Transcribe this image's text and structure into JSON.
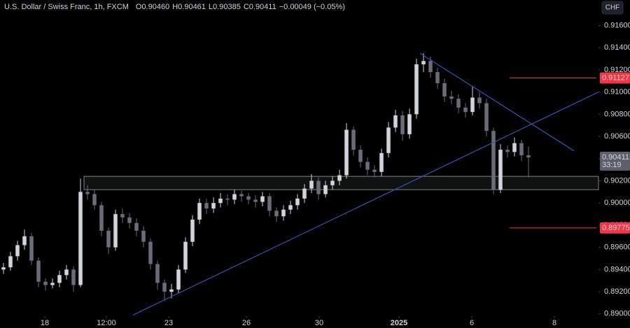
{
  "chart_data": {
    "type": "candlestick",
    "title": "U.S. Dollar / Swiss Franc, 1h, FXCM",
    "ohlc_legend": [
      {
        "key": "O",
        "value": "0.90460"
      },
      {
        "key": "H",
        "value": "0.90461"
      },
      {
        "key": "L",
        "value": "0.90385"
      },
      {
        "key": "C",
        "value": "0.90411"
      }
    ],
    "change": "−0.00049 (−0.05%)",
    "currency": "CHF",
    "up_color": "#d1d4dc",
    "down_color": "#6a6d78",
    "xlim": [
      -0.5,
      85
    ],
    "xticks": [
      {
        "value": 5.9,
        "label": "18"
      },
      {
        "value": 14.7,
        "label": "12:00"
      },
      {
        "value": 23.6,
        "label": "23"
      },
      {
        "value": 34.7,
        "label": "26"
      },
      {
        "value": 45.1,
        "label": "30"
      },
      {
        "value": 56.5,
        "label": "2025"
      },
      {
        "value": 66.9,
        "label": "6"
      },
      {
        "value": 78.7,
        "label": "8"
      }
    ],
    "ylim": [
      0.8898,
      0.9183
    ],
    "yticks": [
      {
        "value": 0.89,
        "label": "0.89000"
      },
      {
        "value": 0.892,
        "label": "0.89200"
      },
      {
        "value": 0.894,
        "label": "0.89400"
      },
      {
        "value": 0.896,
        "label": "0.89600"
      },
      {
        "value": 0.898,
        "label": "0.89800"
      },
      {
        "value": 0.9,
        "label": "0.90000"
      },
      {
        "value": 0.902,
        "label": "0.90200"
      },
      {
        "value": 0.904,
        "label": "0.90400"
      },
      {
        "value": 0.906,
        "label": "0.90600"
      },
      {
        "value": 0.908,
        "label": "0.90800"
      },
      {
        "value": 0.91,
        "label": "0.91000"
      },
      {
        "value": 0.912,
        "label": "0.91200"
      },
      {
        "value": 0.914,
        "label": "0.91400"
      },
      {
        "value": 0.916,
        "label": "0.91600"
      }
    ],
    "grid": false,
    "open": [
      0.894,
      0.8942,
      0.8952,
      0.8962,
      0.897,
      0.8948,
      0.8929,
      0.8926,
      0.8928,
      0.8935,
      0.894,
      0.8926,
      0.901,
      0.9008,
      0.8998,
      0.8975,
      0.896,
      0.899,
      0.8987,
      0.8982,
      0.8975,
      0.8965,
      0.8945,
      0.8928,
      0.892,
      0.8922,
      0.894,
      0.8965,
      0.8985,
      0.9,
      0.8995,
      0.9,
      0.9004,
      0.9003,
      0.9008,
      0.9006,
      0.9003,
      0.9001,
      0.9006,
      0.8993,
      0.8988,
      0.8994,
      0.8998,
      0.9004,
      0.9013,
      0.902,
      0.9008,
      0.9016,
      0.902,
      0.9025,
      0.9066,
      0.9048,
      0.9037,
      0.903,
      0.9028,
      0.9045,
      0.9068,
      0.9079,
      0.9062,
      0.908,
      0.9125,
      0.9128,
      0.9118,
      0.9108,
      0.9096,
      0.9094,
      0.9086,
      0.9082,
      0.9095,
      0.909,
      0.9065,
      0.9012,
      0.9048,
      0.9046,
      0.9054,
      0.9043
    ],
    "high": [
      0.8946,
      0.8956,
      0.8966,
      0.8976,
      0.8973,
      0.8951,
      0.8932,
      0.8932,
      0.8939,
      0.8944,
      0.8943,
      0.9022,
      0.9016,
      0.9012,
      0.9001,
      0.8978,
      0.8994,
      0.8995,
      0.8991,
      0.8986,
      0.8979,
      0.8968,
      0.8948,
      0.8931,
      0.8927,
      0.8944,
      0.8969,
      0.8989,
      0.9004,
      0.9004,
      0.9005,
      0.9009,
      0.9008,
      0.9012,
      0.9011,
      0.9009,
      0.9007,
      0.901,
      0.9009,
      0.8996,
      0.8998,
      0.9002,
      0.9008,
      0.9017,
      0.9026,
      0.9023,
      0.902,
      0.9024,
      0.903,
      0.9072,
      0.9069,
      0.9052,
      0.9041,
      0.9034,
      0.9049,
      0.9073,
      0.9084,
      0.9083,
      0.9085,
      0.913,
      0.9135,
      0.9132,
      0.9122,
      0.9112,
      0.9101,
      0.9098,
      0.909,
      0.9105,
      0.91,
      0.9094,
      0.9068,
      0.9053,
      0.9052,
      0.9059,
      0.9057,
      0.9051
    ],
    "low": [
      0.8936,
      0.8939,
      0.8948,
      0.8958,
      0.8944,
      0.8924,
      0.8921,
      0.8923,
      0.8924,
      0.8931,
      0.892,
      0.8924,
      0.9003,
      0.8994,
      0.897,
      0.8954,
      0.8957,
      0.8982,
      0.8977,
      0.897,
      0.896,
      0.894,
      0.8922,
      0.8912,
      0.8914,
      0.8919,
      0.8937,
      0.8961,
      0.8981,
      0.899,
      0.8991,
      0.8996,
      0.8998,
      0.8999,
      0.9001,
      0.8999,
      0.8996,
      0.8997,
      0.8988,
      0.8983,
      0.8984,
      0.899,
      0.8994,
      0.9,
      0.9009,
      0.9003,
      0.9005,
      0.9012,
      0.9016,
      0.9022,
      0.9043,
      0.9032,
      0.9025,
      0.9023,
      0.9024,
      0.9041,
      0.9064,
      0.9056,
      0.9058,
      0.9076,
      0.9118,
      0.9113,
      0.9103,
      0.9091,
      0.9089,
      0.9081,
      0.9077,
      0.9079,
      0.9085,
      0.906,
      0.9008,
      0.9009,
      0.9041,
      0.9042,
      0.9038,
      0.9023
    ],
    "close": [
      0.8942,
      0.8952,
      0.8962,
      0.897,
      0.8948,
      0.8929,
      0.8926,
      0.8928,
      0.8935,
      0.894,
      0.8926,
      0.901,
      0.9008,
      0.8998,
      0.8975,
      0.896,
      0.899,
      0.8987,
      0.8982,
      0.8975,
      0.8965,
      0.8945,
      0.8928,
      0.892,
      0.8922,
      0.894,
      0.8965,
      0.8985,
      0.9,
      0.8995,
      0.9,
      0.9004,
      0.9003,
      0.9008,
      0.9006,
      0.9003,
      0.9001,
      0.9006,
      0.8993,
      0.8988,
      0.8994,
      0.8998,
      0.9004,
      0.9013,
      0.902,
      0.9008,
      0.9016,
      0.902,
      0.9025,
      0.9066,
      0.9048,
      0.9037,
      0.903,
      0.9028,
      0.9045,
      0.9068,
      0.9079,
      0.9062,
      0.908,
      0.9125,
      0.9128,
      0.9118,
      0.9108,
      0.9096,
      0.9094,
      0.9086,
      0.9082,
      0.9095,
      0.909,
      0.9065,
      0.9012,
      0.9048,
      0.9046,
      0.9054,
      0.9043,
      0.90411
    ],
    "zone": {
      "low": 0.9012,
      "high": 0.9024,
      "from": 11.5,
      "color": "#d1d4dc"
    },
    "trendlines": [
      {
        "x": [
          18.5,
          85
        ],
        "y": [
          0.8899,
          0.91
        ],
        "color": "#3f4fb5"
      },
      {
        "x": [
          59.5,
          81.5
        ],
        "y": [
          0.9135,
          0.9047
        ],
        "color": "#3f4fb5"
      }
    ],
    "levels": [
      {
        "value": 0.91127,
        "from": 72.3,
        "color": "#f23645"
      },
      {
        "value": 0.89775,
        "from": 72.3,
        "color": "#f23645"
      }
    ],
    "current_price": {
      "value": 0.90411,
      "countdown": "33:19",
      "color": "#5d606b"
    }
  }
}
